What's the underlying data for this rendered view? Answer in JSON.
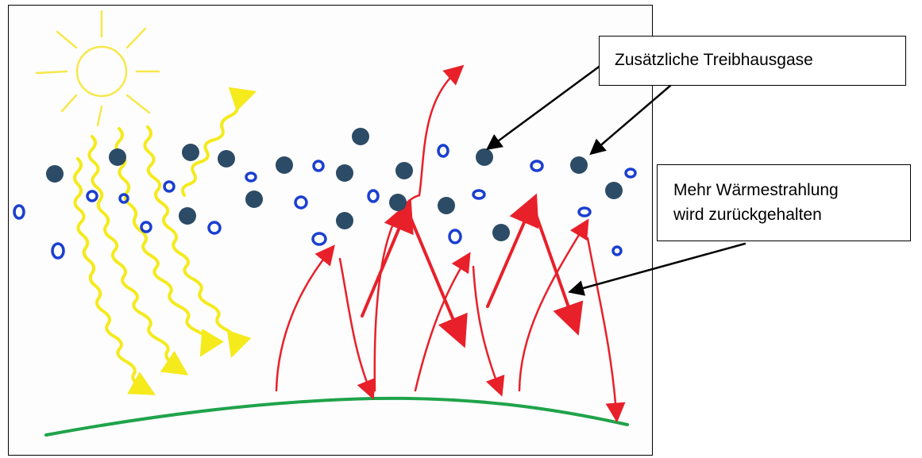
{
  "callouts": {
    "extra_gases": "Zusätzliche Treibhausgase",
    "heat_line1": "Mehr Wärmestrahlung",
    "heat_line2": "wird zurückgehalten"
  },
  "colors": {
    "sun": "#f7e84a",
    "solar_rays": "#f5ea1c",
    "ground": "#1fa34a",
    "heat_arrows": "#e8202a",
    "dark_molecules": "#2c4b66",
    "open_molecules": "#1b3fd0"
  },
  "icons": [
    "sun-icon",
    "greenhouse-gas-molecule-icon",
    "arrow-icon"
  ]
}
